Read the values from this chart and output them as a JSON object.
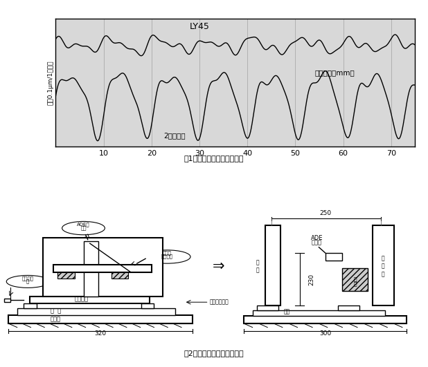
{
  "fig1_title": "图1：钢球通过振动测定数据",
  "fig2_title": "图2：钢球通过振动测定装置",
  "chart_label_top": "LY45",
  "chart_label_bottom": "2点接触品",
  "chart_ylabel": "位〔0.1μm/1目盛〕",
  "chart_xlabel": "移動距離〔mm〕",
  "xticks": [
    10,
    20,
    30,
    40,
    50,
    60,
    70
  ],
  "bg_color": "#d8d8d8",
  "line_color": "#000000",
  "grid_color": "#aaaaaa",
  "text_color": "#000000",
  "figsize": [
    6.18,
    5.31
  ],
  "dpi": 100
}
